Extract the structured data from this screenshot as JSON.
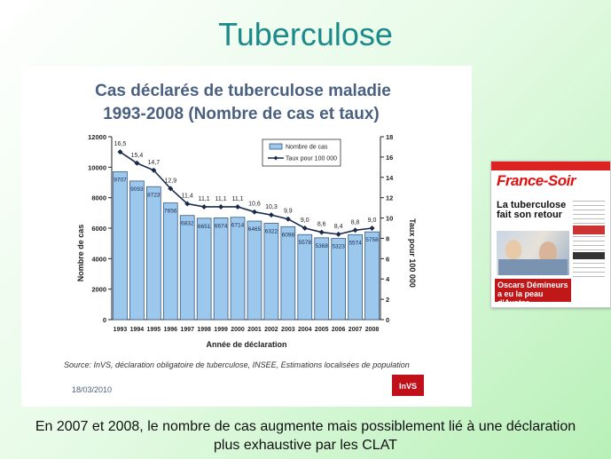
{
  "slide": {
    "title": "Tuberculose",
    "caption_line1": "En 2007 et 2008, le nombre de cas augmente mais possiblement lié à une déclaration",
    "caption_line2": "plus exhaustive par les CLAT"
  },
  "newspaper": {
    "masthead": "France-Soir",
    "headline": "La tuberculose fait son retour",
    "bottom_text": "Oscars Démineurs a eu la peau d'Avatar"
  },
  "chart_meta": {
    "source": "Source: InVS, déclaration obligatoire de tuberculose, INSEE, Estimations localisées de population",
    "date": "18/03/2010",
    "logo_text": "InVS"
  },
  "colors": {
    "title": "#1a8a8a",
    "chart_title": "#4a6080",
    "bar_fill": "#9cc8ee",
    "bar_stroke": "#3a5a80",
    "line": "#1a2a4a"
  },
  "chart_data": {
    "type": "bar",
    "title_line1": "Cas déclarés de tuberculose maladie",
    "title_line2": "1993-2008 (Nombre de cas et taux)",
    "xlabel": "Année de déclaration",
    "ylabel": "Nombre de cas",
    "y2label": "Taux pour 100 000",
    "categories": [
      "1993",
      "1994",
      "1995",
      "1996",
      "1997",
      "1998",
      "1999",
      "2000",
      "2001",
      "2002",
      "2003",
      "2004",
      "2005",
      "2006",
      "2007",
      "2008"
    ],
    "ylim": [
      0,
      12000
    ],
    "y2lim": [
      0,
      18
    ],
    "yticks": [
      "0",
      "2000",
      "4000",
      "6000",
      "8000",
      "10000",
      "12000"
    ],
    "y2ticks": [
      "0",
      "2",
      "4",
      "6",
      "8",
      "10",
      "12",
      "14",
      "16",
      "18"
    ],
    "legend_position": "top-right",
    "grid": false,
    "series": [
      {
        "name": "Nombre de cas",
        "type": "bar",
        "values": [
          9707,
          9093,
          8723,
          7656,
          6832,
          6651,
          6674,
          6714,
          6465,
          6322,
          6098,
          5578,
          5368,
          5323,
          5574,
          5758
        ],
        "labels": [
          "9707",
          "9093",
          "8723",
          "7656",
          "6832",
          "6651",
          "6674",
          "6714",
          "6465",
          "6322",
          "6098",
          "5578",
          "5368",
          "5323",
          "5574",
          "5758"
        ]
      },
      {
        "name": "Taux pour 100 000",
        "type": "line",
        "axis": "right",
        "values": [
          16.5,
          15.4,
          14.7,
          12.9,
          11.4,
          11.1,
          11.1,
          11.1,
          10.6,
          10.3,
          9.9,
          9.0,
          8.6,
          8.4,
          8.8,
          9.0
        ],
        "labels": [
          "16,5",
          "15,4",
          "14,7",
          "12,9",
          "11,4",
          "11,1",
          "11,1",
          "11,1",
          "10,6",
          "10,3",
          "9,9",
          "9,0",
          "8,6",
          "8,4",
          "8,8",
          "9,0"
        ]
      }
    ]
  }
}
